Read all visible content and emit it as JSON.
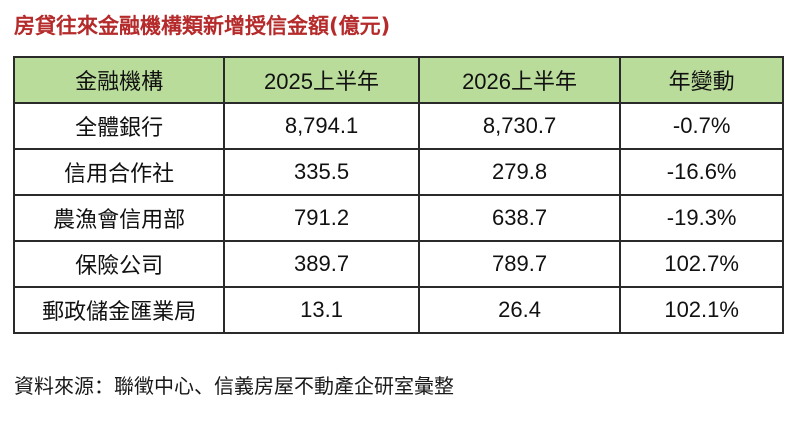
{
  "title": "房貸往來金融機構類新增授信金額(億元)",
  "table": {
    "headers": [
      "金融機構",
      "2025上半年",
      "2026上半年",
      "年變動"
    ],
    "rows": [
      [
        "全體銀行",
        "8,794.1",
        "8,730.7",
        "-0.7%"
      ],
      [
        "信用合作社",
        "335.5",
        "279.8",
        "-16.6%"
      ],
      [
        "農漁會信用部",
        "791.2",
        "638.7",
        "-19.3%"
      ],
      [
        "保險公司",
        "389.7",
        "789.7",
        "102.7%"
      ],
      [
        "郵政儲金匯業局",
        "13.1",
        "26.4",
        "102.1%"
      ]
    ]
  },
  "source": "資料來源：聯徵中心、信義房屋不動產企研室彙整",
  "colors": {
    "title": "#b52a2a",
    "header_bg": "#b9dc9b",
    "border": "#2a2a2a"
  }
}
